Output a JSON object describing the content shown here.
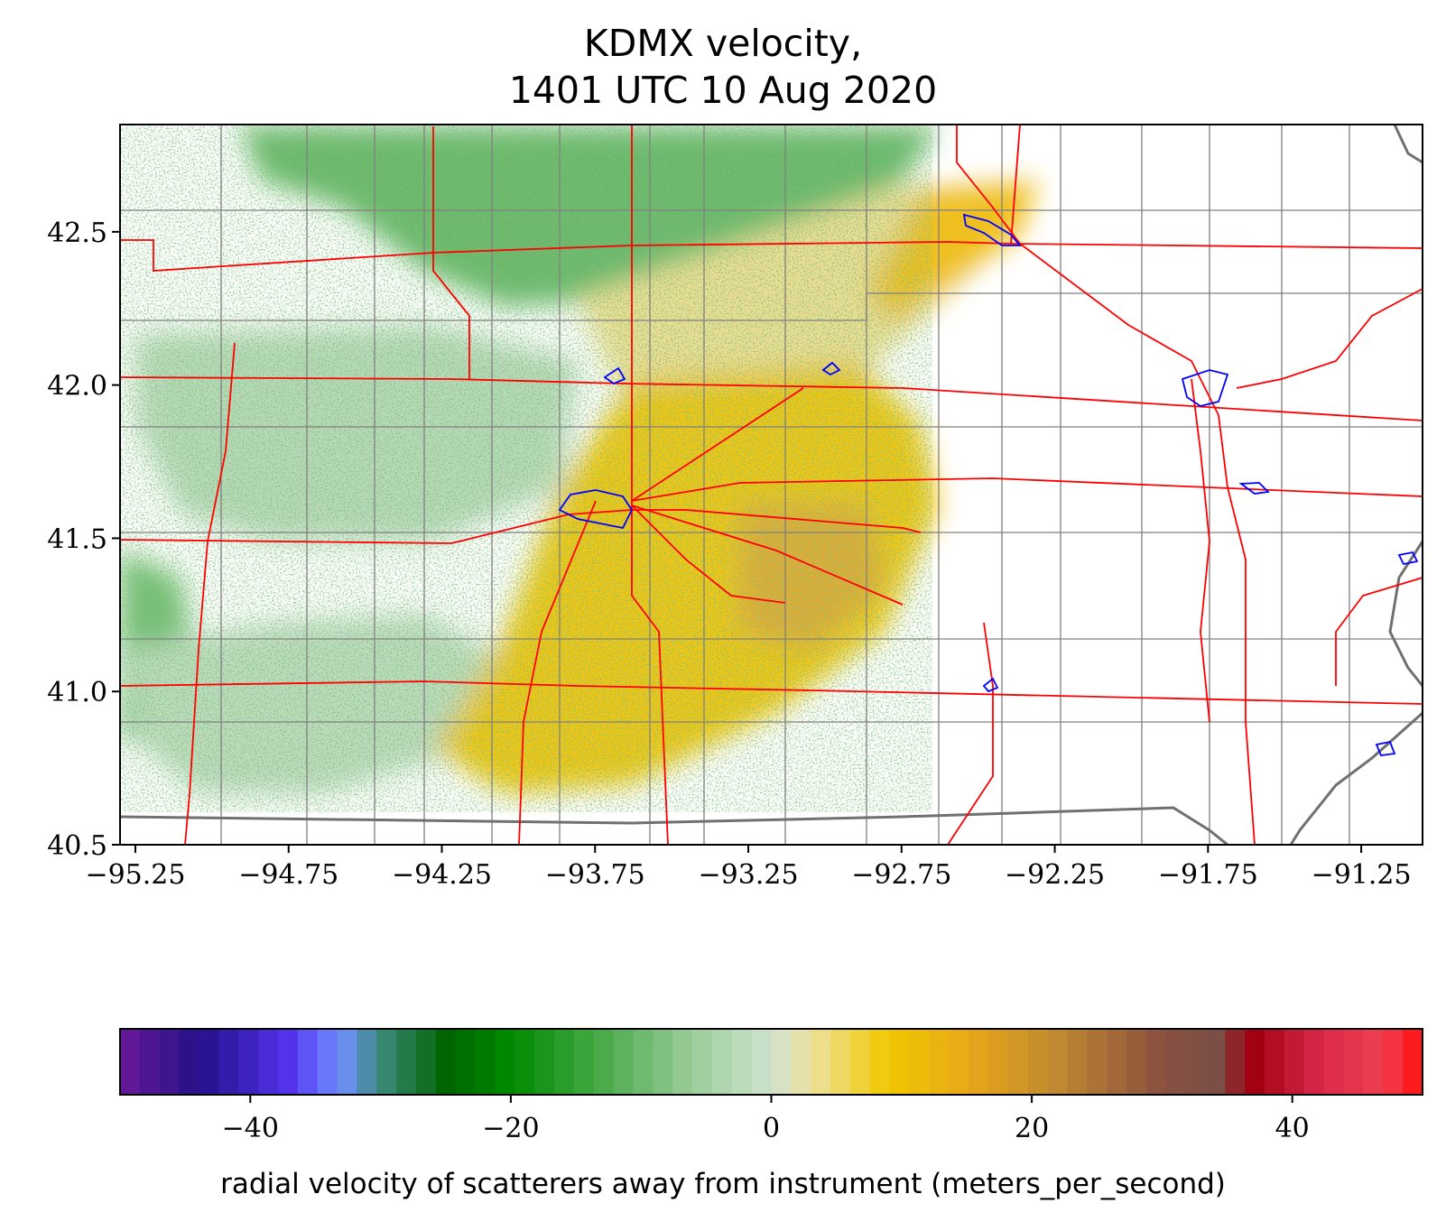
{
  "title_line1": "KDMX velocity,",
  "title_line2": "1401 UTC 10 Aug 2020",
  "map": {
    "lon_range": [
      -95.3,
      -91.05
    ],
    "lat_range": [
      40.5,
      42.85
    ],
    "x_ticks": [
      {
        "value": -95.25,
        "label": "−95.25"
      },
      {
        "value": -94.75,
        "label": "−94.75"
      },
      {
        "value": -94.25,
        "label": "−94.25"
      },
      {
        "value": -93.75,
        "label": "−93.75"
      },
      {
        "value": -93.25,
        "label": "−93.25"
      },
      {
        "value": -92.75,
        "label": "−92.75"
      },
      {
        "value": -92.25,
        "label": "−92.25"
      },
      {
        "value": -91.75,
        "label": "−91.75"
      },
      {
        "value": -91.25,
        "label": "−91.25"
      }
    ],
    "y_ticks": [
      {
        "value": 42.5,
        "label": "42.5"
      },
      {
        "value": 42.0,
        "label": "42.0"
      },
      {
        "value": 41.5,
        "label": "41.5"
      },
      {
        "value": 41.0,
        "label": "41.0"
      },
      {
        "value": 40.5,
        "label": "40.5"
      }
    ],
    "colors": {
      "county_lines": "#808080",
      "highways": "#ff0000",
      "urban_outlines": "#0000ff",
      "state_line": "#808080"
    }
  },
  "colorbar": {
    "range": [
      -50,
      50
    ],
    "ticks": [
      {
        "value": -40,
        "label": "−40"
      },
      {
        "value": -20,
        "label": "−20"
      },
      {
        "value": 0,
        "label": "0"
      },
      {
        "value": 20,
        "label": "20"
      },
      {
        "value": 40,
        "label": "40"
      }
    ],
    "label": "radial velocity of scatterers away from instrument (meters_per_second)",
    "stops": [
      {
        "v": -50,
        "c": "#6a1a9a"
      },
      {
        "v": -44,
        "c": "#241088"
      },
      {
        "v": -37,
        "c": "#5533ee"
      },
      {
        "v": -33,
        "c": "#7090ff"
      },
      {
        "v": -30,
        "c": "#3a8a7a"
      },
      {
        "v": -25,
        "c": "#006400"
      },
      {
        "v": -20,
        "c": "#008a00"
      },
      {
        "v": -13,
        "c": "#4aaa4a"
      },
      {
        "v": -6,
        "c": "#9acd9a"
      },
      {
        "v": 0,
        "c": "#cfe3cf"
      },
      {
        "v": 3,
        "c": "#ece1a0"
      },
      {
        "v": 9,
        "c": "#f0c800"
      },
      {
        "v": 15,
        "c": "#e8a818"
      },
      {
        "v": 22,
        "c": "#c08830"
      },
      {
        "v": 30,
        "c": "#8a5040"
      },
      {
        "v": 34,
        "c": "#7a5048"
      },
      {
        "v": 37,
        "c": "#a00010"
      },
      {
        "v": 42,
        "c": "#d8284a"
      },
      {
        "v": 47,
        "c": "#f04050"
      },
      {
        "v": 50,
        "c": "#ff1010"
      }
    ]
  }
}
